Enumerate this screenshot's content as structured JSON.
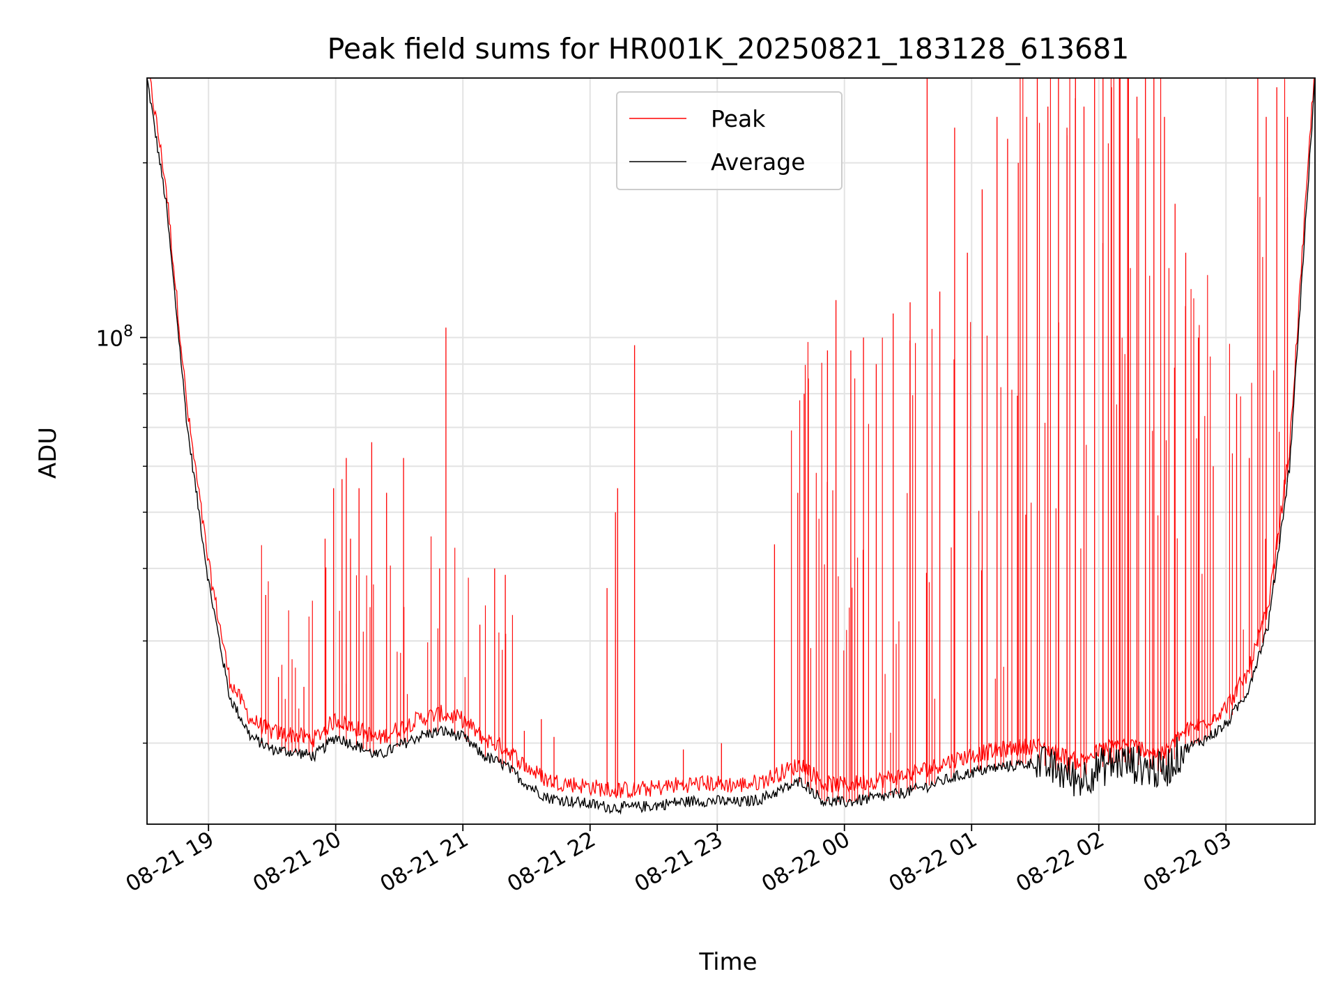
{
  "chart_data": {
    "type": "line",
    "title": "Peak field sums for HR001K_20250821_183128_613681",
    "xlabel": "Time",
    "ylabel": "ADU",
    "y_scale": "log",
    "ylim": [
      14500000,
      280000000
    ],
    "xlim": [
      "08-21 18:31",
      "08-22 03:42"
    ],
    "grid": true,
    "legend_position": "upper-center",
    "x_ticks": [
      "08-21 19",
      "08-21 20",
      "08-21 21",
      "08-21 22",
      "08-21 23",
      "08-22 00",
      "08-22 01",
      "08-22 02",
      "08-22 03"
    ],
    "y_major_tick_label": {
      "base": "10",
      "exp": "8"
    },
    "series": [
      {
        "name": "Peak",
        "color": "#ff0000"
      },
      {
        "name": "Average",
        "color": "#000000"
      }
    ],
    "average_curve": [
      [
        "08-21 18:31",
        280000000
      ],
      [
        "08-21 18:40",
        170000000
      ],
      [
        "08-21 18:50",
        70000000
      ],
      [
        "08-21 19:00",
        38000000
      ],
      [
        "08-21 19:10",
        24000000
      ],
      [
        "08-21 19:20",
        20500000
      ],
      [
        "08-21 19:30",
        19500000
      ],
      [
        "08-21 19:40",
        19300000
      ],
      [
        "08-21 19:50",
        19000000
      ],
      [
        "08-21 20:00",
        20500000
      ],
      [
        "08-21 20:10",
        19800000
      ],
      [
        "08-21 20:20",
        19000000
      ],
      [
        "08-21 20:30",
        19800000
      ],
      [
        "08-21 20:40",
        20600000
      ],
      [
        "08-21 20:50",
        21000000
      ],
      [
        "08-21 21:00",
        20500000
      ],
      [
        "08-21 21:10",
        19000000
      ],
      [
        "08-21 21:20",
        18300000
      ],
      [
        "08-21 21:30",
        17000000
      ],
      [
        "08-21 21:40",
        16100000
      ],
      [
        "08-21 21:50",
        15900000
      ],
      [
        "08-21 22:00",
        15700000
      ],
      [
        "08-21 22:10",
        15500000
      ],
      [
        "08-21 22:20",
        15500000
      ],
      [
        "08-21 22:30",
        15600000
      ],
      [
        "08-21 22:40",
        15800000
      ],
      [
        "08-21 22:50",
        15900000
      ],
      [
        "08-21 23:00",
        15900000
      ],
      [
        "08-21 23:10",
        15800000
      ],
      [
        "08-21 23:20",
        16000000
      ],
      [
        "08-21 23:30",
        16600000
      ],
      [
        "08-21 23:40",
        17200000
      ],
      [
        "08-21 23:50",
        15900000
      ],
      [
        "08-22 00:00",
        15800000
      ],
      [
        "08-22 00:10",
        16000000
      ],
      [
        "08-22 00:20",
        16200000
      ],
      [
        "08-22 00:30",
        16500000
      ],
      [
        "08-22 00:40",
        16900000
      ],
      [
        "08-22 00:50",
        17400000
      ],
      [
        "08-22 01:00",
        17800000
      ],
      [
        "08-22 01:10",
        18100000
      ],
      [
        "08-22 01:20",
        18300000
      ],
      [
        "08-22 01:30",
        18500000
      ],
      [
        "08-22 01:40",
        18000000
      ],
      [
        "08-22 01:50",
        17300000
      ],
      [
        "08-22 02:00",
        18100000
      ],
      [
        "08-22 02:10",
        18600000
      ],
      [
        "08-22 02:20",
        18300000
      ],
      [
        "08-22 02:30",
        17800000
      ],
      [
        "08-22 02:40",
        19500000
      ],
      [
        "08-22 02:50",
        20300000
      ],
      [
        "08-22 03:00",
        21500000
      ],
      [
        "08-22 03:10",
        24500000
      ],
      [
        "08-22 03:20",
        32000000
      ],
      [
        "08-22 03:30",
        60000000
      ],
      [
        "08-22 03:42",
        280000000
      ]
    ],
    "peak_spikes": [
      [
        "08-21 19:27",
        36000000
      ],
      [
        "08-21 19:33",
        26000000
      ],
      [
        "08-21 19:45",
        25000000
      ],
      [
        "08-21 19:55",
        45000000
      ],
      [
        "08-21 19:59",
        55000000
      ],
      [
        "08-21 20:03",
        57000000
      ],
      [
        "08-21 20:05",
        62000000
      ],
      [
        "08-21 20:07",
        45000000
      ],
      [
        "08-21 20:11",
        55000000
      ],
      [
        "08-21 20:17",
        66000000
      ],
      [
        "08-21 20:24",
        54000000
      ],
      [
        "08-21 20:32",
        62000000
      ],
      [
        "08-21 20:49",
        40000000
      ],
      [
        "08-21 20:52",
        104000000
      ],
      [
        "08-21 21:08",
        32000000
      ],
      [
        "08-21 21:15",
        40000000
      ],
      [
        "08-21 21:20",
        39000000
      ],
      [
        "08-21 21:29",
        21000000
      ],
      [
        "08-21 21:37",
        22000000
      ],
      [
        "08-21 21:43",
        20500000
      ],
      [
        "08-21 22:08",
        37000000
      ],
      [
        "08-21 22:12",
        50000000
      ],
      [
        "08-21 22:13",
        55000000
      ],
      [
        "08-21 22:21",
        97000000
      ],
      [
        "08-21 22:44",
        19500000
      ],
      [
        "08-21 23:02",
        20000000
      ],
      [
        "08-21 23:27",
        44000000
      ],
      [
        "08-21 23:38",
        54000000
      ],
      [
        "08-21 23:41",
        80000000
      ],
      [
        "08-21 23:43",
        85000000
      ],
      [
        "08-21 23:52",
        95000000
      ],
      [
        "08-21 23:56",
        116000000
      ],
      [
        "08-22 00:03",
        95000000
      ],
      [
        "08-22 00:09",
        100000000
      ],
      [
        "08-22 00:15",
        90000000
      ],
      [
        "08-22 00:23",
        110000000
      ],
      [
        "08-22 00:31",
        115000000
      ],
      [
        "08-22 00:39",
        280000000
      ],
      [
        "08-22 00:45",
        120000000
      ],
      [
        "08-22 00:52",
        230000000
      ],
      [
        "08-22 00:58",
        140000000
      ],
      [
        "08-22 01:05",
        180000000
      ],
      [
        "08-22 01:12",
        240000000
      ],
      [
        "08-22 01:17",
        220000000
      ],
      [
        "08-22 01:22",
        200000000
      ],
      [
        "08-22 01:26",
        240000000
      ],
      [
        "08-22 01:31",
        280000000
      ],
      [
        "08-22 01:36",
        250000000
      ],
      [
        "08-22 01:41",
        280000000
      ],
      [
        "08-22 01:45",
        230000000
      ],
      [
        "08-22 01:49",
        280000000
      ],
      [
        "08-22 01:53",
        250000000
      ],
      [
        "08-22 01:58",
        280000000
      ],
      [
        "08-22 02:02",
        280000000
      ],
      [
        "08-22 02:06",
        270000000
      ],
      [
        "08-22 02:10",
        280000000
      ],
      [
        "08-22 02:14",
        280000000
      ],
      [
        "08-22 02:18",
        260000000
      ],
      [
        "08-22 02:22",
        280000000
      ],
      [
        "08-22 02:26",
        280000000
      ],
      [
        "08-22 02:31",
        240000000
      ],
      [
        "08-22 02:36",
        170000000
      ],
      [
        "08-22 02:41",
        140000000
      ],
      [
        "08-22 02:47",
        100000000
      ],
      [
        "08-22 02:54",
        60000000
      ],
      [
        "08-22 03:05",
        80000000
      ],
      [
        "08-22 03:11",
        62000000
      ],
      [
        "08-22 03:15",
        280000000
      ],
      [
        "08-22 03:19",
        240000000
      ],
      [
        "08-22 03:24",
        270000000
      ],
      [
        "08-22 03:29",
        240000000
      ]
    ]
  }
}
